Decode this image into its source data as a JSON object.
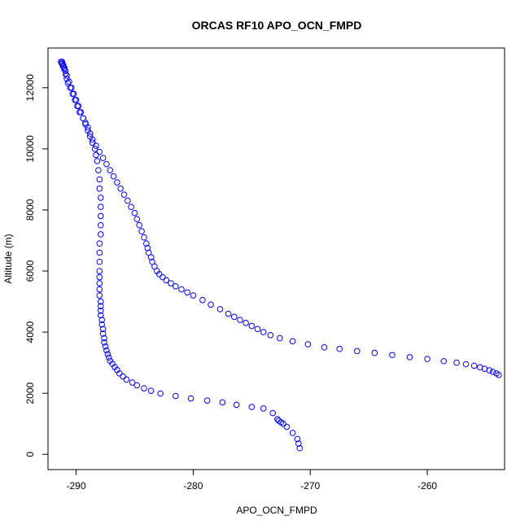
{
  "chart_data": {
    "type": "scatter",
    "title": "ORCAS RF10 APO_OCN_FMPD",
    "xlabel": "APO_OCN_FMPD",
    "ylabel": "Altitude (m)",
    "xlim": [
      -292.4,
      -253.4
    ],
    "ylim": [
      -500,
      13300
    ],
    "xticks": [
      -290,
      -280,
      -270,
      -260
    ],
    "yticks": [
      0,
      2000,
      4000,
      6000,
      8000,
      10000,
      12000
    ],
    "grid": false,
    "legend": "none",
    "marker": "open-circle",
    "point_color": "#0000ff",
    "series": [
      {
        "x": [
          -270.9,
          -271.0,
          -271.1,
          -271.5,
          -272.0,
          -272.3,
          -272.5,
          -272.7,
          -272.8,
          -273.2,
          -274.0,
          -275.0,
          -276.3,
          -277.5,
          -278.8,
          -280.2,
          -281.5,
          -282.8,
          -283.6,
          -284.2,
          -284.8,
          -285.2,
          -285.7,
          -286.0,
          -286.3,
          -286.5,
          -286.7,
          -286.9,
          -287.1,
          -287.2,
          -287.3,
          -287.4,
          -287.5,
          -287.6,
          -287.6,
          -287.7,
          -287.7,
          -287.8,
          -287.8,
          -287.9,
          -287.9,
          -287.9,
          -287.9,
          -288.0,
          -288.0,
          -288.0,
          -288.0,
          -288.0,
          -288.0,
          -288.0,
          -288.0,
          -287.9,
          -287.9,
          -287.9,
          -287.9,
          -287.9,
          -288.0,
          -288.0,
          -288.1,
          -288.2,
          -288.3,
          -288.4,
          -288.6,
          -288.8,
          -289.0,
          -289.2,
          -289.4,
          -289.6,
          -289.8,
          -290.0,
          -290.2,
          -290.4,
          -290.6,
          -290.8,
          -290.9,
          -291.0,
          -291.1,
          -291.1,
          -291.2,
          -291.2
        ],
        "y": [
          200,
          350,
          500,
          700,
          900,
          1000,
          1050,
          1100,
          1150,
          1350,
          1500,
          1550,
          1620,
          1700,
          1760,
          1830,
          1910,
          1990,
          2080,
          2160,
          2260,
          2350,
          2450,
          2550,
          2650,
          2760,
          2860,
          2960,
          3060,
          3170,
          3280,
          3400,
          3530,
          3660,
          3800,
          3950,
          4100,
          4250,
          4400,
          4550,
          4700,
          4850,
          5000,
          5200,
          5400,
          5600,
          5800,
          6000,
          6300,
          6600,
          6900,
          7200,
          7500,
          7800,
          8100,
          8400,
          8700,
          9000,
          9300,
          9600,
          9800,
          10000,
          10200,
          10400,
          10600,
          10800,
          11000,
          11200,
          11400,
          11600,
          11800,
          12000,
          12200,
          12400,
          12550,
          12650,
          12700,
          12750,
          12800,
          12850
        ]
      },
      {
        "x": [
          -291.3,
          -291.2,
          -291.1,
          -291.0,
          -290.9,
          -290.8,
          -290.7,
          -290.5,
          -290.3,
          -290.1,
          -289.9,
          -289.7,
          -289.4,
          -289.2,
          -289.0,
          -288.8,
          -288.6,
          -288.3,
          -288.0,
          -287.7,
          -287.4,
          -287.1,
          -286.8,
          -286.5,
          -286.2,
          -285.9,
          -285.6,
          -285.3,
          -285.0,
          -284.8,
          -284.6,
          -284.4,
          -284.2,
          -284.0,
          -283.9,
          -283.8,
          -283.6,
          -283.5,
          -283.3,
          -283.1,
          -282.9,
          -282.6,
          -282.3,
          -281.9,
          -281.5,
          -281.0,
          -280.5,
          -280.0,
          -279.2,
          -278.5,
          -277.7,
          -277.0,
          -276.5,
          -276.0,
          -275.5,
          -275.0,
          -274.5,
          -274.0,
          -273.4,
          -272.6,
          -271.5,
          -270.2,
          -268.8,
          -267.5,
          -266.0,
          -264.5,
          -263.0,
          -261.5,
          -260.0,
          -258.6,
          -257.5,
          -256.7,
          -256.0,
          -255.5,
          -255.1,
          -254.7,
          -254.4,
          -254.1,
          -253.9
        ],
        "y": [
          12850,
          12780,
          12700,
          12600,
          12450,
          12300,
          12150,
          12000,
          11800,
          11600,
          11400,
          11200,
          11000,
          10850,
          10700,
          10500,
          10300,
          10100,
          9900,
          9700,
          9500,
          9300,
          9100,
          8900,
          8700,
          8500,
          8300,
          8100,
          7900,
          7700,
          7500,
          7300,
          7100,
          6900,
          6750,
          6600,
          6450,
          6300,
          6150,
          6000,
          5900,
          5800,
          5700,
          5600,
          5500,
          5400,
          5300,
          5200,
          5050,
          4900,
          4750,
          4600,
          4500,
          4400,
          4300,
          4200,
          4100,
          4000,
          3900,
          3800,
          3700,
          3600,
          3500,
          3450,
          3380,
          3320,
          3250,
          3180,
          3120,
          3050,
          3000,
          2950,
          2900,
          2850,
          2800,
          2750,
          2700,
          2650,
          2600
        ]
      }
    ]
  }
}
